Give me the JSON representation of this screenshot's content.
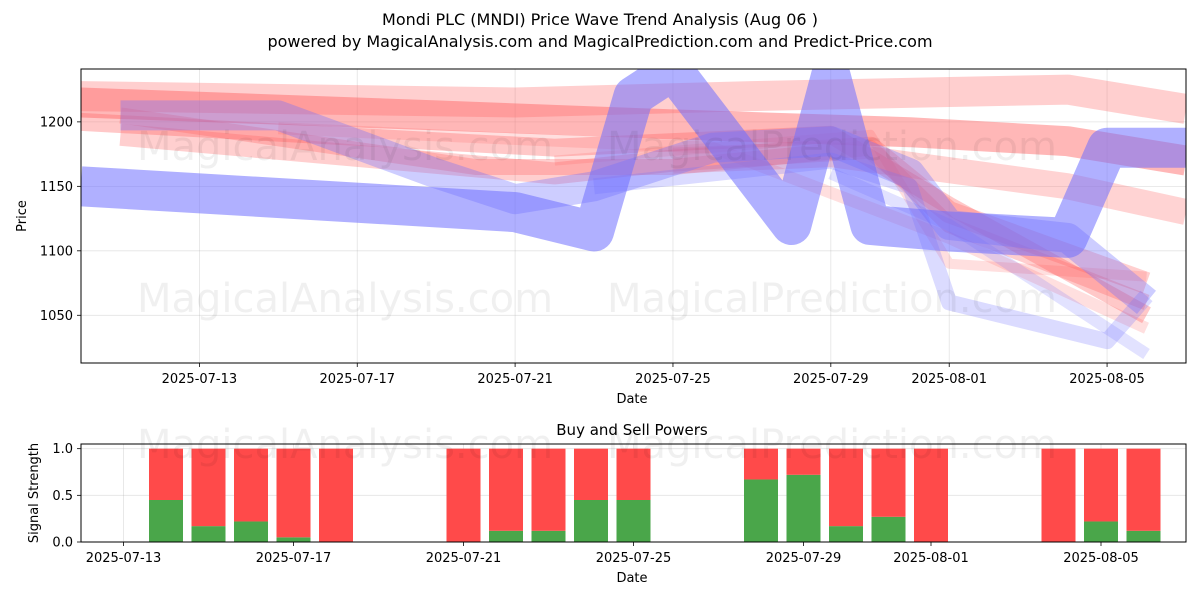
{
  "title": "Mondi PLC (MNDI) Price Wave Trend Analysis (Aug 06 )",
  "subtitle": "powered by MagicalAnalysis.com and MagicalPrediction.com and Predict-Price.com",
  "watermarks": [
    "MagicalAnalysis.com",
    "MagicalPrediction.com"
  ],
  "colors": {
    "buy": "#4aa64a",
    "sell": "#ff4a4a",
    "red_wave": "#ff6060",
    "blue_wave": "#6f6fff"
  },
  "chart_data": [
    {
      "type": "area",
      "title": "",
      "xlabel": "Date",
      "ylabel": "Price",
      "x_ticks": [
        "2025-07-13",
        "2025-07-17",
        "2025-07-21",
        "2025-07-25",
        "2025-07-29",
        "2025-08-01",
        "2025-08-05"
      ],
      "y_ticks": [
        1050,
        1100,
        1150,
        1200
      ],
      "xlim": [
        "2025-07-10",
        "2025-08-07"
      ],
      "ylim": [
        1013,
        1241
      ],
      "grid": true,
      "series": [
        {
          "color": "red",
          "width": 30,
          "opacity": 0.45,
          "points": [
            [
              "2025-07-10",
              1215
            ],
            [
              "2025-07-19",
              1205
            ],
            [
              "2025-07-25",
              1198
            ],
            [
              "2025-07-31",
              1192
            ],
            [
              "2025-08-04",
              1185
            ],
            [
              "2025-08-07",
              1170
            ]
          ]
        },
        {
          "color": "red",
          "width": 18,
          "opacity": 0.35,
          "points": [
            [
              "2025-07-10",
              1200
            ],
            [
              "2025-07-22",
              1180
            ],
            [
              "2025-07-29",
              1190
            ],
            [
              "2025-08-01",
              1135
            ],
            [
              "2025-08-06",
              1050
            ]
          ]
        },
        {
          "color": "red",
          "width": 16,
          "opacity": 0.3,
          "points": [
            [
              "2025-07-11",
              1205
            ],
            [
              "2025-07-20",
              1165
            ],
            [
              "2025-07-25",
              1165
            ],
            [
              "2025-07-30",
              1180
            ],
            [
              "2025-08-01",
              1120
            ],
            [
              "2025-08-06",
              1060
            ]
          ]
        },
        {
          "color": "red",
          "width": 22,
          "opacity": 0.3,
          "points": [
            [
              "2025-07-11",
              1190
            ],
            [
              "2025-07-22",
              1160
            ],
            [
              "2025-07-25",
              1170
            ],
            [
              "2025-07-30",
              1180
            ],
            [
              "2025-08-01",
              1130
            ],
            [
              "2025-08-06",
              1075
            ]
          ]
        },
        {
          "color": "red",
          "width": 30,
          "opacity": 0.3,
          "points": [
            [
              "2025-07-10",
              1220
            ],
            [
              "2025-07-21",
              1215
            ],
            [
              "2025-07-27",
              1220
            ],
            [
              "2025-08-04",
              1225
            ],
            [
              "2025-08-07",
              1210
            ]
          ]
        },
        {
          "color": "red",
          "width": 26,
          "opacity": 0.28,
          "points": [
            [
              "2025-07-25",
              1170
            ],
            [
              "2025-07-29",
              1175
            ],
            [
              "2025-08-04",
              1150
            ],
            [
              "2025-08-07",
              1130
            ]
          ]
        },
        {
          "color": "red",
          "width": 12,
          "opacity": 0.2,
          "points": [
            [
              "2025-07-15",
              1195
            ],
            [
              "2025-07-26",
              1180
            ],
            [
              "2025-08-01",
              1110
            ],
            [
              "2025-08-06",
              1040
            ]
          ]
        },
        {
          "color": "red",
          "width": 10,
          "opacity": 0.2,
          "points": [
            [
              "2025-07-22",
              1170
            ],
            [
              "2025-07-30",
              1190
            ],
            [
              "2025-08-01",
              1090
            ],
            [
              "2025-08-06",
              1080
            ]
          ]
        },
        {
          "color": "blue",
          "width": 40,
          "opacity": 0.55,
          "points": [
            [
              "2025-07-10",
              1150
            ],
            [
              "2025-07-21",
              1130
            ],
            [
              "2025-07-23",
              1115
            ],
            [
              "2025-07-24",
              1220
            ],
            [
              "2025-07-25",
              1240
            ],
            [
              "2025-07-28",
              1120
            ],
            [
              "2025-07-29",
              1235
            ],
            [
              "2025-07-30",
              1120
            ],
            [
              "2025-08-01",
              1115
            ],
            [
              "2025-08-04",
              1110
            ],
            [
              "2025-08-05",
              1180
            ],
            [
              "2025-08-07",
              1180
            ]
          ]
        },
        {
          "color": "blue",
          "width": 30,
          "opacity": 0.35,
          "points": [
            [
              "2025-07-11",
              1205
            ],
            [
              "2025-07-15",
              1205
            ],
            [
              "2025-07-19",
              1160
            ],
            [
              "2025-07-21",
              1140
            ],
            [
              "2025-07-23",
              1150
            ],
            [
              "2025-07-26",
              1180
            ],
            [
              "2025-07-29",
              1185
            ],
            [
              "2025-07-31",
              1160
            ],
            [
              "2025-08-01",
              1120
            ],
            [
              "2025-08-04",
              1110
            ],
            [
              "2025-08-06",
              1060
            ]
          ]
        },
        {
          "color": "blue",
          "width": 16,
          "opacity": 0.25,
          "points": [
            [
              "2025-07-23",
              1150
            ],
            [
              "2025-07-29",
              1170
            ],
            [
              "2025-07-31",
              1150
            ],
            [
              "2025-08-01",
              1060
            ],
            [
              "2025-08-05",
              1030
            ],
            [
              "2025-08-06",
              1065
            ]
          ]
        },
        {
          "color": "blue",
          "width": 12,
          "opacity": 0.2,
          "points": [
            [
              "2025-07-29",
              1160
            ],
            [
              "2025-08-01",
              1120
            ],
            [
              "2025-08-05",
              1040
            ],
            [
              "2025-08-06",
              1020
            ]
          ]
        }
      ]
    },
    {
      "type": "bar",
      "title": "Buy and Sell Powers",
      "xlabel": "Date",
      "ylabel": "Signal Strength",
      "x_ticks": [
        "2025-07-13",
        "2025-07-17",
        "2025-07-21",
        "2025-07-25",
        "2025-07-29",
        "2025-08-01",
        "2025-08-05"
      ],
      "y_ticks": [
        "0.0",
        "0.5",
        "1.0"
      ],
      "xlim": [
        "2025-07-12",
        "2025-08-07"
      ],
      "ylim": [
        0,
        1.05
      ],
      "grid": true,
      "categories": [
        "2025-07-14",
        "2025-07-15",
        "2025-07-16",
        "2025-07-17",
        "2025-07-18",
        "2025-07-21",
        "2025-07-22",
        "2025-07-23",
        "2025-07-24",
        "2025-07-25",
        "2025-07-28",
        "2025-07-29",
        "2025-07-30",
        "2025-07-31",
        "2025-08-01",
        "2025-08-04",
        "2025-08-05",
        "2025-08-06"
      ],
      "series": [
        {
          "name": "buy",
          "values": [
            0.45,
            0.17,
            0.22,
            0.05,
            0,
            0,
            0.12,
            0.12,
            0.45,
            0.45,
            0.67,
            0.72,
            0.17,
            0.27,
            0,
            0,
            0.22,
            0.12
          ]
        },
        {
          "name": "sell",
          "values": [
            0.55,
            0.83,
            0.78,
            0.95,
            1,
            1,
            0.88,
            0.88,
            0.55,
            0.55,
            0.33,
            0.28,
            0.83,
            0.73,
            1,
            1,
            0.78,
            0.88
          ]
        }
      ]
    }
  ]
}
